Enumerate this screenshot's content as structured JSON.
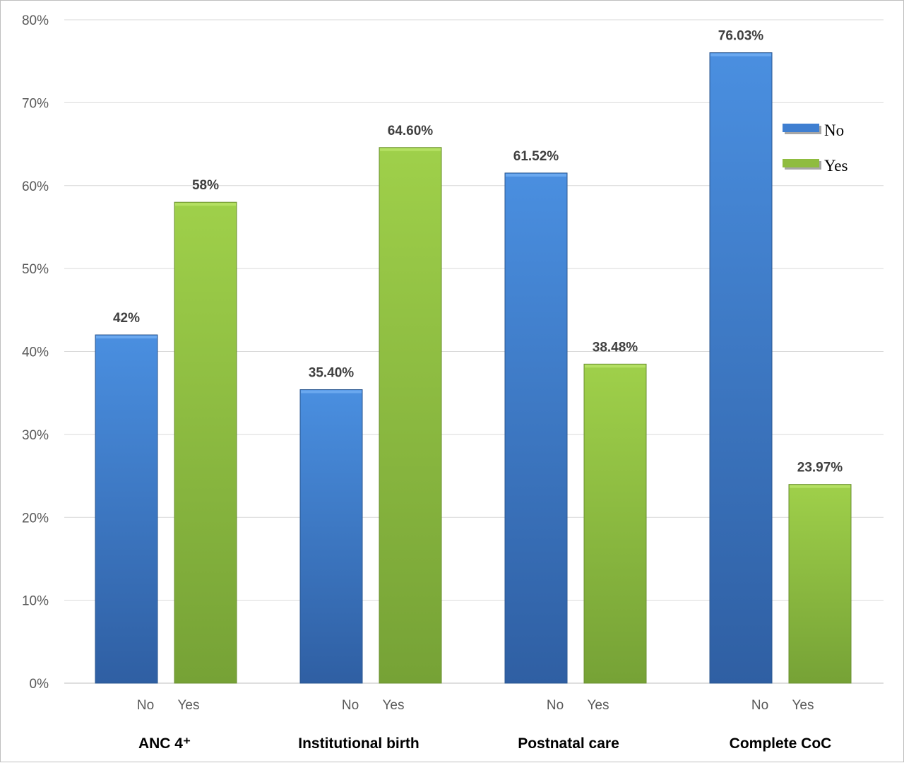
{
  "chart_data": {
    "type": "bar",
    "categories": [
      "ANC 4⁺",
      "Institutional birth",
      "Postnatal care",
      "Complete CoC"
    ],
    "bar_labels": [
      "No",
      "Yes"
    ],
    "series": [
      {
        "name": "No",
        "values": [
          42,
          35.4,
          61.52,
          76.03
        ],
        "labels": [
          "42%",
          "35.40%",
          "61.52%",
          "76.03%"
        ],
        "color": "#3f7fd1"
      },
      {
        "name": "Yes",
        "values": [
          58,
          64.6,
          38.48,
          23.97
        ],
        "labels": [
          "58%",
          "64.60%",
          "38.48%",
          "23.97%"
        ],
        "color": "#8fbc3f"
      }
    ],
    "ylim": [
      0,
      80
    ],
    "yticks": [
      "0%",
      "10%",
      "20%",
      "30%",
      "40%",
      "50%",
      "60%",
      "70%",
      "80%"
    ],
    "grid": true,
    "legend": {
      "position": "right",
      "entries": [
        "No",
        "Yes"
      ]
    },
    "title": "",
    "xlabel": "",
    "ylabel": ""
  }
}
